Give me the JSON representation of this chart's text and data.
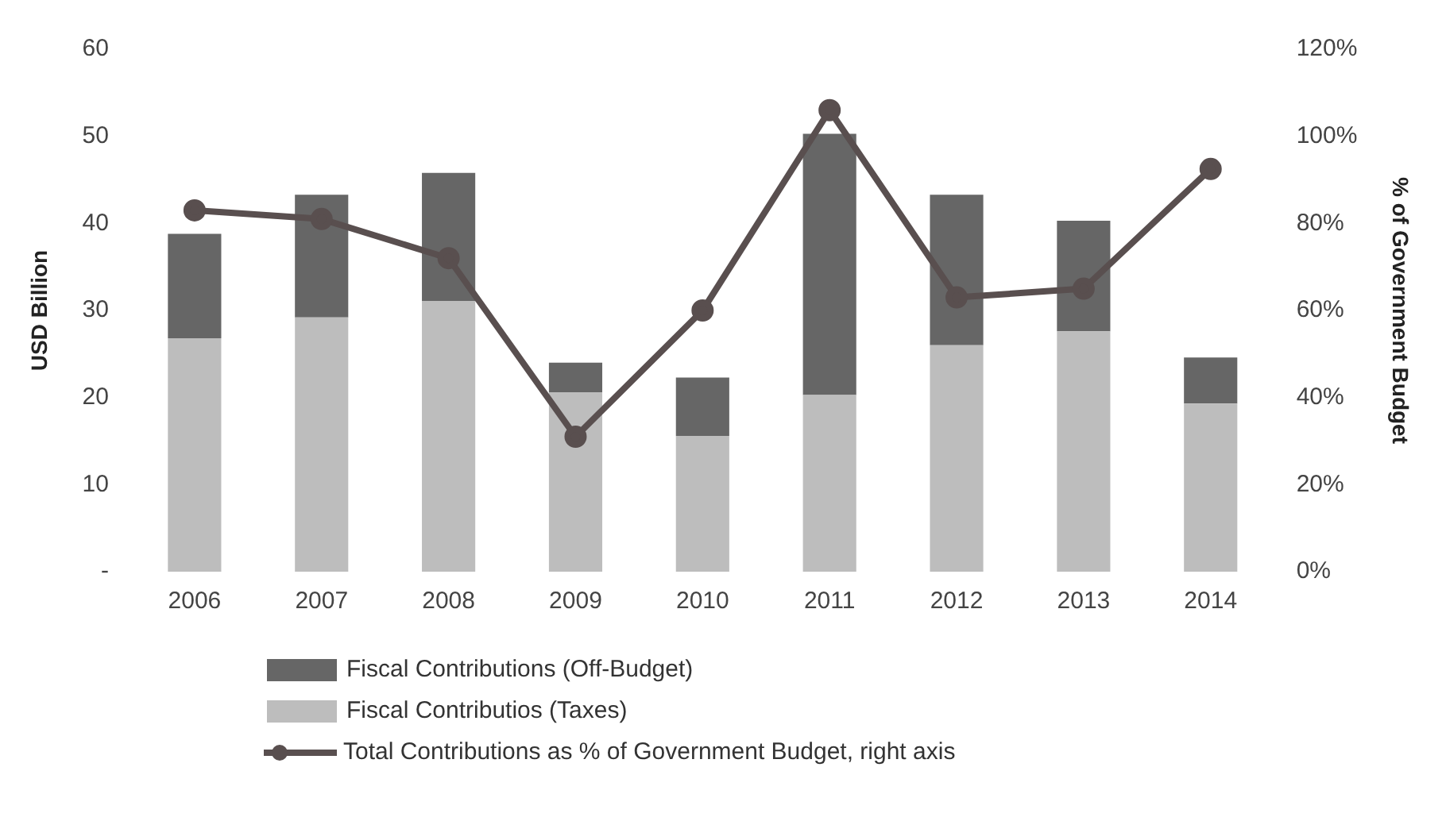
{
  "chart_data": {
    "type": "bar",
    "stacked": true,
    "categories": [
      "2006",
      "2007",
      "2008",
      "2009",
      "2010",
      "2011",
      "2012",
      "2013",
      "2014"
    ],
    "ylabel": "USD Billion",
    "y2label": "% of Government Budget",
    "ylim": [
      0,
      60
    ],
    "yticks": [
      {
        "value": 0,
        "label": "-"
      },
      10,
      20,
      30,
      40,
      50,
      60
    ],
    "y2lim": [
      0,
      120
    ],
    "y2ticks": [
      {
        "value": 0,
        "label": "0%"
      },
      {
        "value": 20,
        "label": "20%"
      },
      {
        "value": 40,
        "label": "40%"
      },
      {
        "value": 60,
        "label": "60%"
      },
      {
        "value": 80,
        "label": "80%"
      },
      {
        "value": 100,
        "label": "100%"
      },
      {
        "value": 120,
        "label": "120%"
      }
    ],
    "series": [
      {
        "name": "Fiscal Contributios (Taxes)",
        "color": "#bdbdbd",
        "values": [
          26.8,
          29.2,
          31.1,
          20.6,
          15.6,
          20.3,
          26,
          27.6,
          19.3
        ]
      },
      {
        "name": "Fiscal Contributions (Off-Budget)",
        "color": "#666666",
        "values": [
          12,
          14.1,
          14.7,
          3.4,
          6.7,
          30,
          17.3,
          12.7,
          5.3
        ]
      },
      {
        "name": "Total Contributions as % of Government Budget, right axis",
        "type": "line",
        "axis": "y2",
        "marker": "circle",
        "color": "#594f4f",
        "values": [
          83,
          81,
          72,
          31,
          60,
          106,
          63,
          65,
          92.5
        ]
      }
    ],
    "grid": false,
    "legend": "bottom left"
  }
}
